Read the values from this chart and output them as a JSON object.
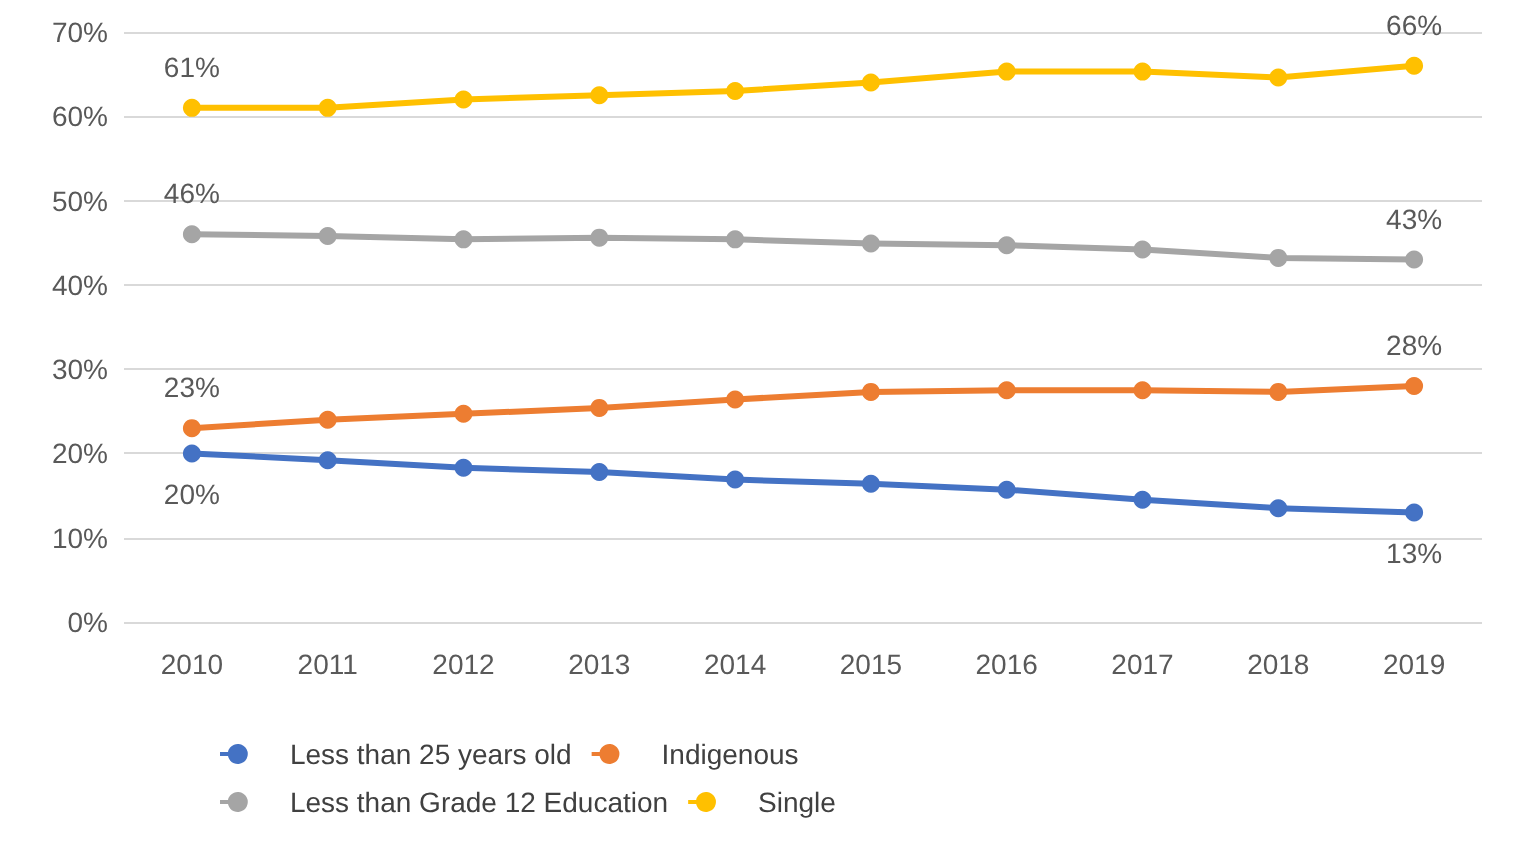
{
  "chart_data": {
    "type": "line",
    "categories": [
      "2010",
      "2011",
      "2012",
      "2013",
      "2014",
      "2015",
      "2016",
      "2017",
      "2018",
      "2019"
    ],
    "series": [
      {
        "name": "Less than 25 years old",
        "color": "#4472c4",
        "values": [
          20,
          19.2,
          18.3,
          17.8,
          16.9,
          16.4,
          15.7,
          14.5,
          13.5,
          13
        ],
        "value_labels": [
          "20%",
          null,
          null,
          null,
          null,
          null,
          null,
          null,
          null,
          "13%"
        ]
      },
      {
        "name": "Indigenous",
        "color": "#ed7d31",
        "values": [
          23,
          24,
          24.7,
          25.4,
          26.4,
          27.3,
          27.5,
          27.5,
          27.3,
          28
        ],
        "value_labels": [
          "23%",
          null,
          null,
          null,
          null,
          null,
          null,
          null,
          null,
          "28%"
        ]
      },
      {
        "name": "Less than Grade 12 Education",
        "color": "#a5a5a5",
        "values": [
          46,
          45.8,
          45.4,
          45.6,
          45.4,
          44.9,
          44.7,
          44.2,
          43.2,
          43
        ],
        "value_labels": [
          "46%",
          null,
          null,
          null,
          null,
          null,
          null,
          null,
          null,
          "43%"
        ]
      },
      {
        "name": "Single",
        "color": "#ffc000",
        "values": [
          61,
          61,
          62,
          62.5,
          63,
          64,
          65.3,
          65.3,
          64.6,
          66
        ],
        "value_labels": [
          "61%",
          null,
          null,
          null,
          null,
          null,
          null,
          null,
          null,
          "66%"
        ]
      }
    ],
    "ylim": [
      0,
      70
    ],
    "yticks": [
      {
        "value": 0,
        "label": "0%"
      },
      {
        "value": 10,
        "label": "10%"
      },
      {
        "value": 20,
        "label": "20%"
      },
      {
        "value": 30,
        "label": "30%"
      },
      {
        "value": 40,
        "label": "40%"
      },
      {
        "value": 50,
        "label": "50%"
      },
      {
        "value": 60,
        "label": "60%"
      },
      {
        "value": 70,
        "label": "70%"
      }
    ],
    "grid": "y",
    "legend": "bottom",
    "marker": "circle",
    "line_style": "solid"
  }
}
